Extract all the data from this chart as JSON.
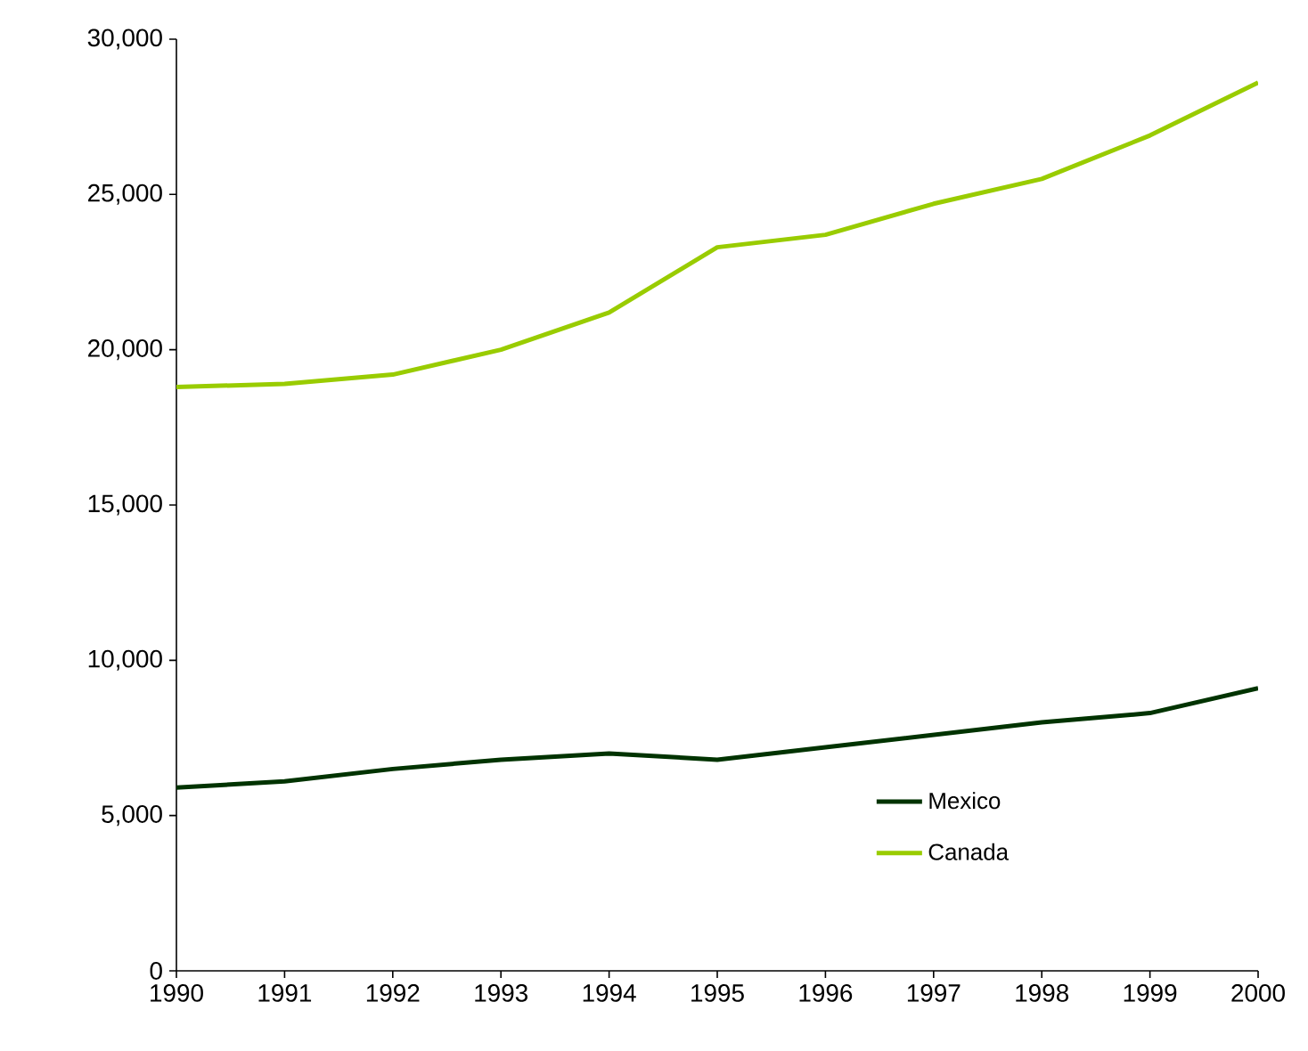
{
  "chart_data": {
    "type": "line",
    "categories": [
      "1990",
      "1991",
      "1992",
      "1993",
      "1994",
      "1995",
      "1996",
      "1997",
      "1998",
      "1999",
      "2000"
    ],
    "series": [
      {
        "name": "Mexico",
        "color": "#003300",
        "values": [
          5900,
          6100,
          6500,
          6800,
          7000,
          6800,
          7200,
          7600,
          8000,
          8300,
          9100
        ]
      },
      {
        "name": "Canada",
        "color": "#99cc00",
        "values": [
          18800,
          18900,
          19200,
          20000,
          21200,
          23300,
          23700,
          24700,
          25500,
          26900,
          28600
        ]
      }
    ],
    "ylim": [
      0,
      30000
    ],
    "yticks": [
      0,
      {
        "value": 5000,
        "label": "5,000"
      },
      {
        "value": 10000,
        "label": "10,000"
      },
      {
        "value": 15000,
        "label": "15,000"
      },
      {
        "value": 20000,
        "label": "20,000"
      },
      {
        "value": 25000,
        "label": "25,000"
      },
      {
        "value": 30000,
        "label": "30,000"
      }
    ],
    "grid": false,
    "legend": "bottom right",
    "marker": "none",
    "line_style": "solid"
  }
}
